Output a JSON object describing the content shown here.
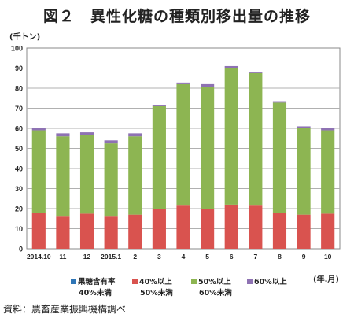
{
  "title": "図２　異性化糖の種類別移出量の推移",
  "source": "資料：農畜産業振興機構調べ",
  "chart_data": {
    "type": "bar",
    "stacked": true,
    "y_unit_label": "(千トン)",
    "x_unit_label": "(年.月)",
    "ylim": [
      0,
      100
    ],
    "yticks": [
      0,
      10,
      20,
      30,
      40,
      50,
      60,
      70,
      80,
      90,
      100
    ],
    "grid": true,
    "legend_position": "bottom",
    "categories": [
      "2014.10",
      "11",
      "12",
      "2015.1",
      "2",
      "3",
      "4",
      "5",
      "6",
      "7",
      "8",
      "9",
      "10"
    ],
    "series": [
      {
        "name_line1": "果糖含有率",
        "name_line2": "40%未満",
        "color": "#2e75b6",
        "values": [
          0,
          0,
          0,
          0,
          0,
          0,
          0,
          0,
          0,
          0,
          0,
          0,
          0
        ]
      },
      {
        "name_line1": "40%以上",
        "name_line2": "50%未満",
        "color": "#d9534f",
        "values": [
          18,
          16,
          17.5,
          16,
          17,
          20,
          21.5,
          20,
          22,
          21.5,
          18,
          17,
          17.5
        ]
      },
      {
        "name_line1": "50%以上",
        "name_line2": "60%未満",
        "color": "#8db552",
        "values": [
          41,
          40,
          39,
          36.5,
          39,
          51,
          60.5,
          60.5,
          68,
          66,
          54.8,
          43.2,
          41.5
        ]
      },
      {
        "name_line1": "60%以上",
        "name_line2": "",
        "color": "#8e72b3",
        "values": [
          1,
          1.5,
          1.5,
          1.5,
          1.5,
          0.7,
          0.8,
          1.5,
          1,
          0.7,
          0.7,
          0.8,
          1
        ]
      }
    ]
  }
}
